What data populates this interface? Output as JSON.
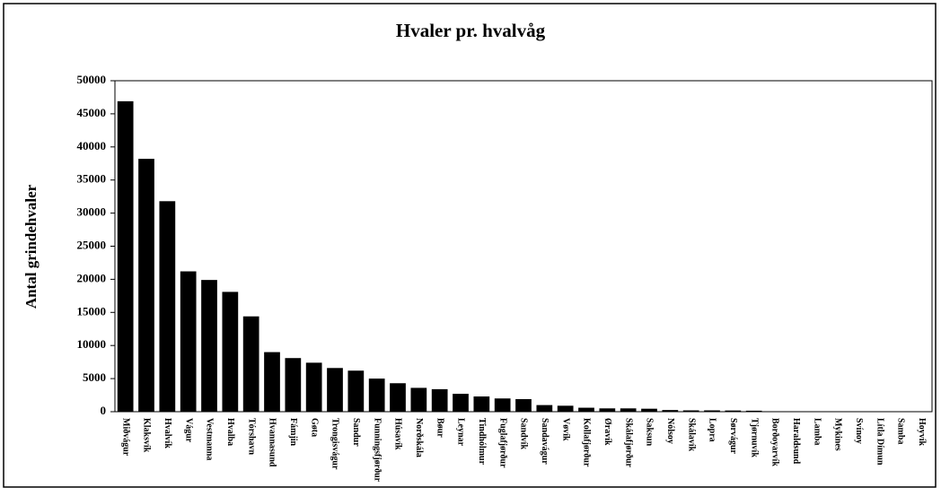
{
  "chart_data": {
    "type": "bar",
    "title": "Hvaler pr. hvalvåg",
    "y_label": "Antal grindehvaler",
    "categories": [
      "Miðvágur",
      "Klaksvík",
      "Hvalvík",
      "Vágur",
      "Vestmanna",
      "Hvalba",
      "Tórshavn",
      "Hvannasund",
      "Fámjin",
      "Gøta",
      "Trongisvágur",
      "Sandur",
      "Funningsfjørður",
      "Húsavík",
      "Norðskála",
      "Bøur",
      "Leynar",
      "Tindhólmur",
      "Fuglafjørður",
      "Sandvík",
      "Sandavágur",
      "Vøvík",
      "Kollafjørður",
      "Øravík",
      "Skálafjørður",
      "Saksun",
      "Nólsoy",
      "Skálavík",
      "Lopra",
      "Sørvágur",
      "Tjørnuvík",
      "Borðoyarvík",
      "Haraldsund",
      "Lamba",
      "Mykines",
      "Svínoy",
      "Lítla Dímun",
      "Samba",
      "Hoyvík"
    ],
    "values": [
      46900,
      38200,
      31800,
      21200,
      19900,
      18100,
      14400,
      9000,
      8100,
      7400,
      6600,
      6200,
      5000,
      4300,
      3600,
      3400,
      2700,
      2300,
      2000,
      1900,
      1000,
      900,
      600,
      500,
      500,
      450,
      250,
      200,
      200,
      180,
      150,
      50,
      40,
      30,
      20,
      20,
      20,
      10,
      10
    ],
    "color": "#000000",
    "ylim": [
      0,
      50000
    ],
    "yticks": [
      0,
      5000,
      10000,
      15000,
      20000,
      25000,
      30000,
      35000,
      40000,
      45000,
      50000
    ],
    "grid": false
  }
}
